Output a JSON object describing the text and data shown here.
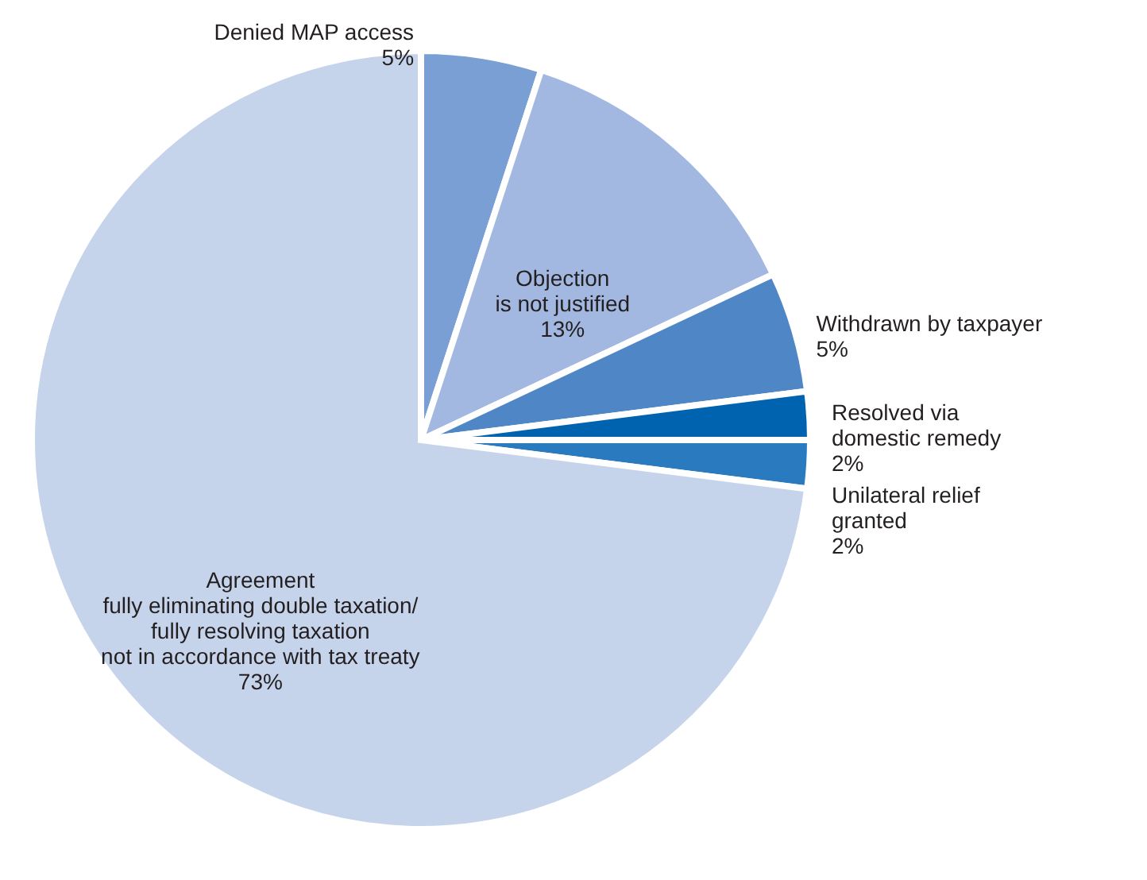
{
  "chart_data": {
    "type": "pie",
    "categories": [
      "Denied MAP access",
      "Objection\nis not justified",
      "Withdrawn by taxpayer",
      "Resolved via\ndomestic remedy",
      "Unilateral relief\ngranted",
      "Agreement\nfully eliminating double taxation/\nfully resolving taxation\nnot in accordance with tax treaty"
    ],
    "values": [
      5,
      13,
      5,
      2,
      2,
      73
    ],
    "colors": [
      "#7a9fd4",
      "#a2b8e0",
      "#4f86c6",
      "#0063b0",
      "#2a7abf",
      "#c5d3eb"
    ],
    "value_labels": [
      "5%",
      "13%",
      "5%",
      "2%",
      "2%",
      "73%"
    ]
  }
}
